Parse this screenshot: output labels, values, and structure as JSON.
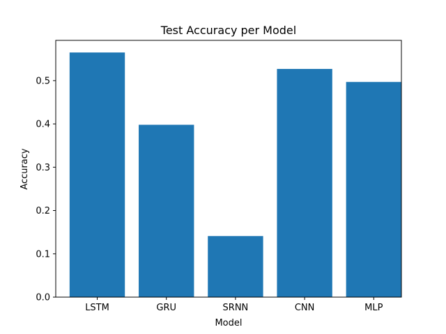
{
  "chart_data": {
    "type": "bar",
    "title": "Test Accuracy per Model",
    "xlabel": "Model",
    "ylabel": "Accuracy",
    "categories": [
      "LSTM",
      "GRU",
      "SRNN",
      "CNN",
      "MLP"
    ],
    "values": [
      0.565,
      0.398,
      0.141,
      0.527,
      0.497
    ],
    "ylim": [
      0,
      0.593
    ],
    "yticks": [
      0.0,
      0.1,
      0.2,
      0.3,
      0.4,
      0.5
    ],
    "ytick_labels": [
      "0.0",
      "0.1",
      "0.2",
      "0.3",
      "0.4",
      "0.5"
    ],
    "bar_color": "#1f77b4",
    "grid": false,
    "legend": "none"
  }
}
